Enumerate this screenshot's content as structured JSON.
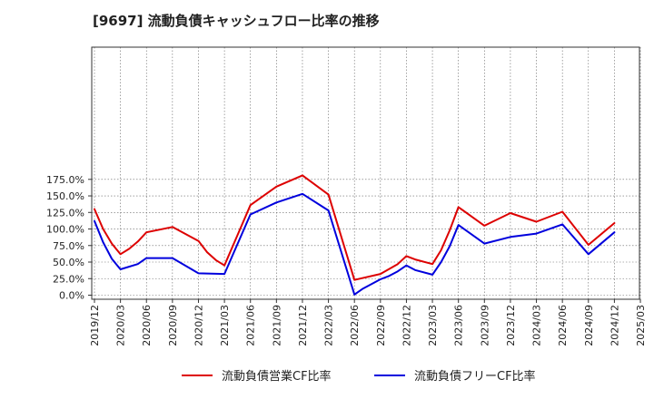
{
  "chart_data": {
    "type": "line",
    "title": "[9697]  流動負債キャッシュフロー比率の推移",
    "xlabel": "",
    "ylabel": "",
    "ylim": [
      0,
      185
    ],
    "y_ticks": [
      "0.0%",
      "25.0%",
      "50.0%",
      "75.0%",
      "100.0%",
      "125.0%",
      "150.0%",
      "175.0%"
    ],
    "y_tick_values": [
      0,
      25,
      50,
      75,
      100,
      125,
      150,
      175
    ],
    "x_ticks": [
      "2019/12",
      "2020/03",
      "2020/06",
      "2020/09",
      "2020/12",
      "2021/03",
      "2021/06",
      "2021/09",
      "2021/12",
      "2022/03",
      "2022/06",
      "2022/09",
      "2022/12",
      "2023/03",
      "2023/06",
      "2023/09",
      "2023/12",
      "2024/03",
      "2024/06",
      "2024/09",
      "2024/12",
      "2025/03"
    ],
    "grid": true,
    "legend_position": "bottom",
    "series": [
      {
        "name": "流動負債営業CF比率",
        "color": "#dd0000",
        "points": [
          [
            "2019/12",
            130
          ],
          [
            "2020/01",
            100
          ],
          [
            "2020/02",
            78
          ],
          [
            "2020/03",
            62
          ],
          [
            "2020/04",
            70
          ],
          [
            "2020/05",
            81
          ],
          [
            "2020/06",
            95
          ],
          [
            "2020/09",
            103
          ],
          [
            "2020/12",
            82
          ],
          [
            "2021/01",
            65
          ],
          [
            "2021/02",
            53
          ],
          [
            "2021/03",
            45
          ],
          [
            "2021/06",
            136
          ],
          [
            "2021/09",
            164
          ],
          [
            "2021/12",
            181
          ],
          [
            "2022/03",
            152
          ],
          [
            "2022/06",
            23
          ],
          [
            "2022/09",
            32
          ],
          [
            "2022/11",
            47
          ],
          [
            "2022/12",
            59
          ],
          [
            "2023/01",
            54
          ],
          [
            "2023/03",
            47
          ],
          [
            "2023/04",
            68
          ],
          [
            "2023/05",
            98
          ],
          [
            "2023/06",
            133
          ],
          [
            "2023/09",
            105
          ],
          [
            "2023/12",
            124
          ],
          [
            "2024/03",
            111
          ],
          [
            "2024/06",
            126
          ],
          [
            "2024/09",
            76
          ],
          [
            "2024/12",
            109
          ]
        ]
      },
      {
        "name": "流動負債フリーCF比率",
        "color": "#0000dd",
        "points": [
          [
            "2019/12",
            112
          ],
          [
            "2020/01",
            80
          ],
          [
            "2020/02",
            55
          ],
          [
            "2020/03",
            39
          ],
          [
            "2020/05",
            47
          ],
          [
            "2020/06",
            56
          ],
          [
            "2020/09",
            56
          ],
          [
            "2020/12",
            33
          ],
          [
            "2021/03",
            32
          ],
          [
            "2021/06",
            122
          ],
          [
            "2021/09",
            140
          ],
          [
            "2021/12",
            153
          ],
          [
            "2022/03",
            128
          ],
          [
            "2022/06",
            1
          ],
          [
            "2022/07",
            10
          ],
          [
            "2022/09",
            24
          ],
          [
            "2022/10",
            29
          ],
          [
            "2022/11",
            36
          ],
          [
            "2022/12",
            45
          ],
          [
            "2023/01",
            38
          ],
          [
            "2023/03",
            31
          ],
          [
            "2023/04",
            50
          ],
          [
            "2023/05",
            74
          ],
          [
            "2023/06",
            106
          ],
          [
            "2023/09",
            78
          ],
          [
            "2023/12",
            88
          ],
          [
            "2024/03",
            93
          ],
          [
            "2024/06",
            107
          ],
          [
            "2024/09",
            62
          ],
          [
            "2024/12",
            95
          ]
        ]
      }
    ]
  }
}
